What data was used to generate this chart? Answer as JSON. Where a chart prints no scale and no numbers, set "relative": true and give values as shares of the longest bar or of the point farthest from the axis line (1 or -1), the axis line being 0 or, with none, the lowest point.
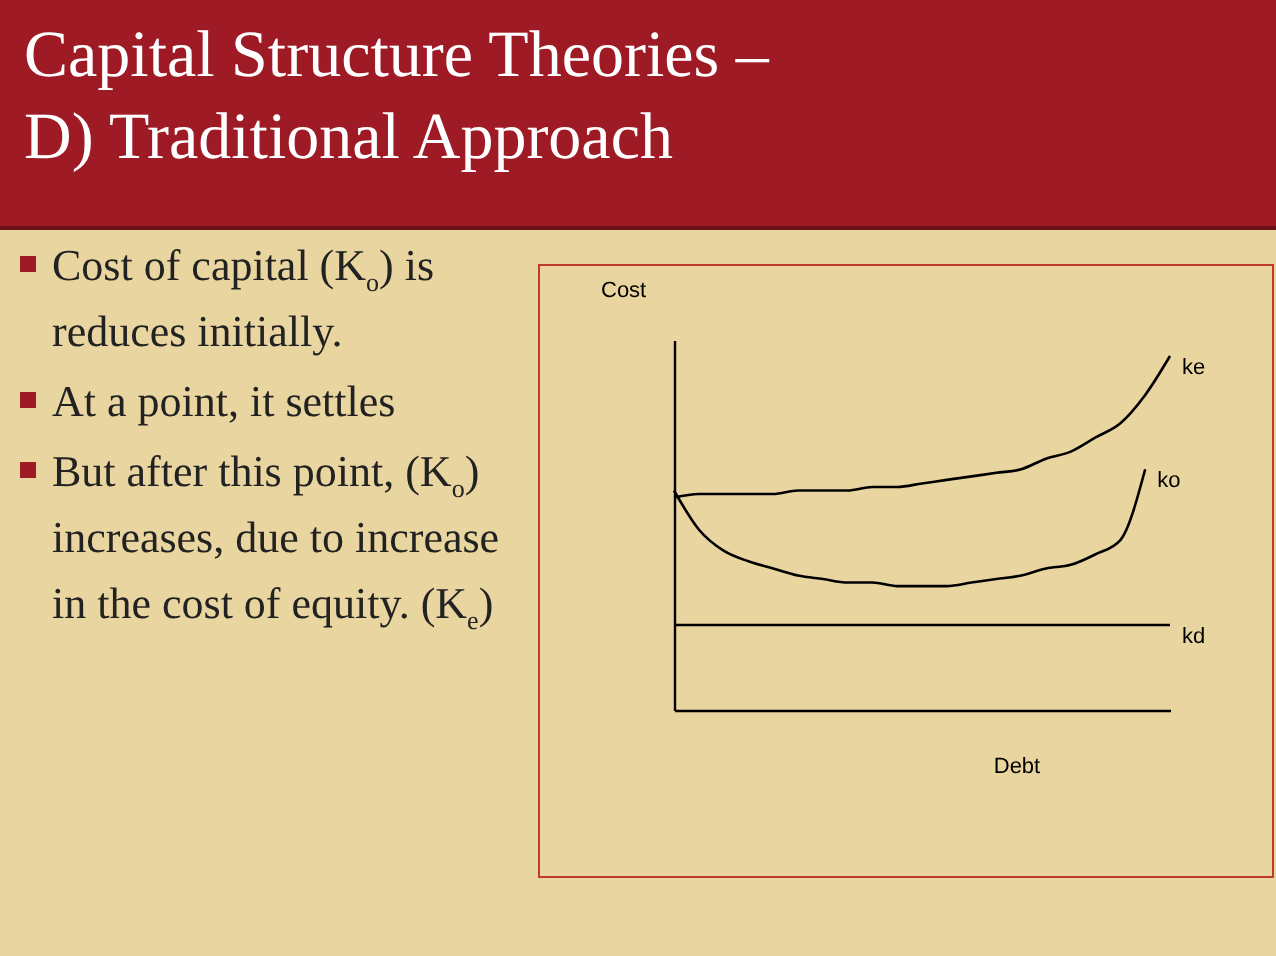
{
  "chart_data": {
    "type": "line",
    "title": "Capital Structure Theories –\nD) Traditional Approach",
    "xlabel": "Debt",
    "ylabel": "Cost",
    "relative": true,
    "legend": false,
    "annotations": [
      "Cost of capital (K$_{o}$) is reduces initially.",
      "At a point, it settles",
      "But after this point, (K$_{o}$) increases, due to increase in the cost of equity. (K$_{e}$)"
    ],
    "categories": [
      null,
      null,
      null,
      null,
      null,
      null,
      null,
      null,
      null,
      null,
      null,
      null,
      null,
      null,
      null,
      null,
      null,
      null,
      null,
      null,
      null
    ],
    "series": [
      {
        "name": "ke",
        "color": "#000000",
        "values": [
          0.6,
          0.61,
          0.61,
          0.61,
          0.61,
          0.62,
          0.62,
          0.62,
          0.63,
          0.63,
          0.64,
          0.65,
          0.66,
          0.67,
          0.68,
          0.71,
          0.73,
          0.77,
          0.81,
          0.89,
          1.0
        ]
      },
      {
        "name": "ko",
        "color": "#000000",
        "values": [
          0.62,
          0.51,
          0.45,
          0.42,
          0.4,
          0.38,
          0.37,
          0.36,
          0.36,
          0.35,
          0.35,
          0.35,
          0.36,
          0.37,
          0.38,
          0.4,
          0.41,
          0.44,
          0.48,
          0.68,
          null
        ]
      },
      {
        "name": "kd",
        "color": "#000000",
        "values": [
          0.24,
          0.24,
          0.24,
          0.24,
          0.24,
          0.24,
          0.24,
          0.24,
          0.24,
          0.24,
          0.24,
          0.24,
          0.24,
          0.24,
          0.24,
          0.24,
          0.24,
          0.24,
          0.24,
          0.24,
          0.24
        ]
      }
    ]
  }
}
